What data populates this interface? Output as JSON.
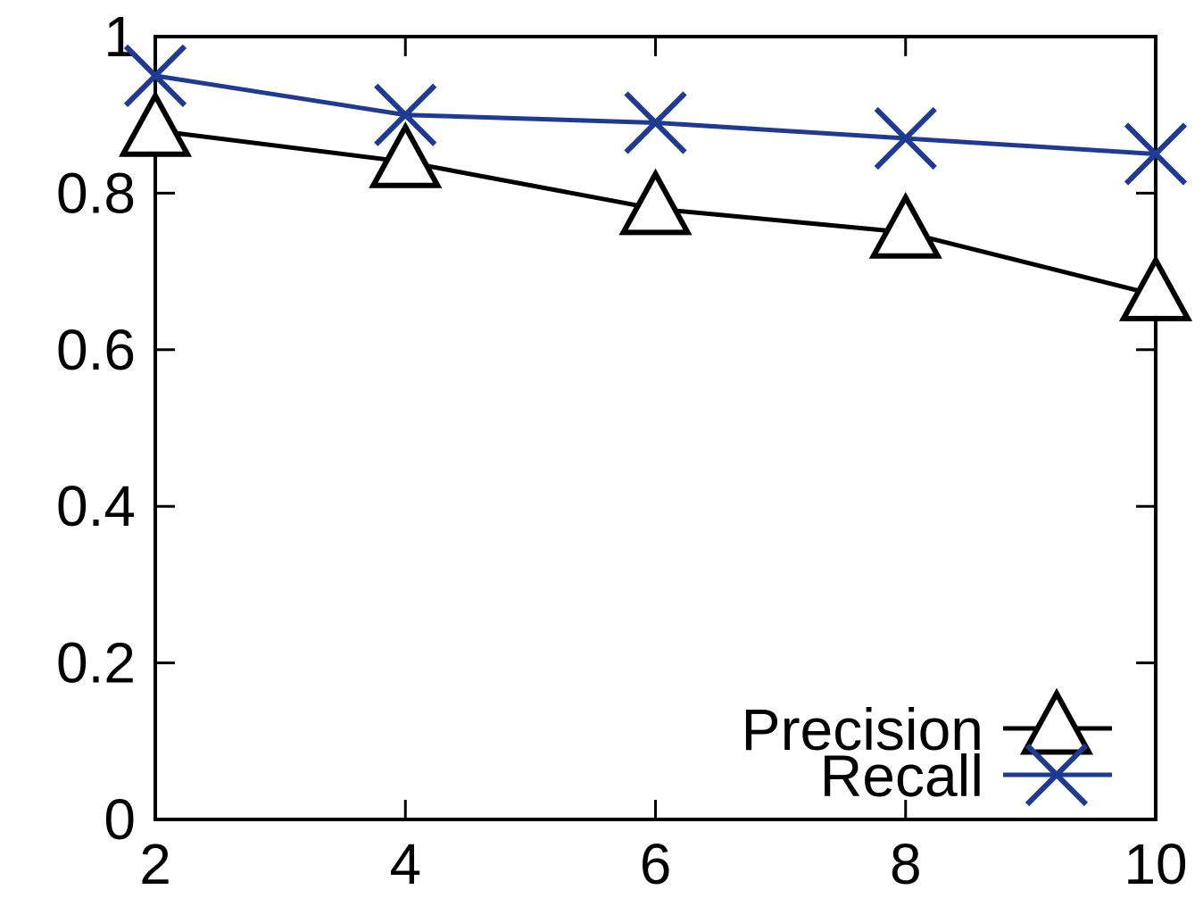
{
  "chart_data": {
    "type": "line",
    "title": "",
    "xlabel": "",
    "ylabel": "",
    "x": [
      2,
      4,
      6,
      8,
      10
    ],
    "xlim": [
      2,
      10
    ],
    "ylim": [
      0,
      1
    ],
    "x_ticks": [
      2,
      4,
      6,
      8,
      10
    ],
    "y_ticks": [
      0,
      0.2,
      0.4,
      0.6,
      0.8,
      1
    ],
    "x_tick_labels": [
      "2",
      "4",
      "6",
      "8",
      "10"
    ],
    "y_tick_labels": [
      "0",
      "0.2",
      "0.4",
      "0.6",
      "0.8",
      "1"
    ],
    "grid": false,
    "legend_position": "bottom-right",
    "series": [
      {
        "name": "Precision",
        "values": [
          0.88,
          0.84,
          0.78,
          0.75,
          0.67
        ],
        "color": "#000000",
        "marker": "triangle"
      },
      {
        "name": "Recall",
        "values": [
          0.95,
          0.9,
          0.89,
          0.87,
          0.85
        ],
        "color": "#1f3a93",
        "marker": "x"
      }
    ]
  }
}
